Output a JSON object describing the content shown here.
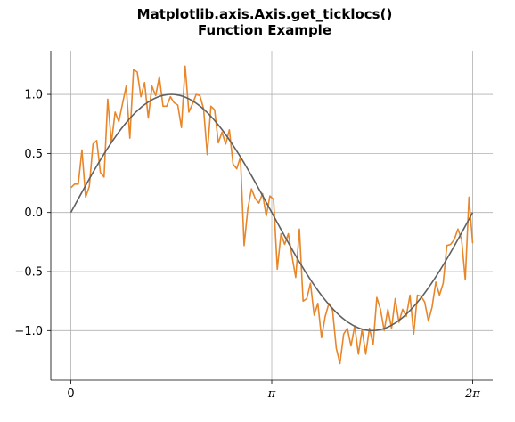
{
  "chart_data": {
    "type": "line",
    "title_lines": [
      "Matplotlib.axis.Axis.get_ticklocs()",
      "Function Example"
    ],
    "xlabel": "",
    "ylabel": "",
    "xlim": [
      -0.314,
      6.597
    ],
    "ylim": [
      -1.42,
      1.37
    ],
    "xticks": [
      {
        "value": 0,
        "label": "0"
      },
      {
        "value": 3.14159,
        "label": "π"
      },
      {
        "value": 6.28319,
        "label": "2π"
      }
    ],
    "yticks": [
      {
        "value": -1.0,
        "label": "−1.0"
      },
      {
        "value": -0.5,
        "label": "−0.5"
      },
      {
        "value": 0.0,
        "label": "0.0"
      },
      {
        "value": 0.5,
        "label": "0.5"
      },
      {
        "value": 1.0,
        "label": "1.0"
      }
    ],
    "grid": true,
    "colors": {
      "noisy": "#e8862a",
      "smooth": "#606060"
    },
    "series": [
      {
        "x_start": 0,
        "x_end": 6.28319,
        "values": [
          0.21,
          0.24,
          0.24,
          0.53,
          0.13,
          0.22,
          0.58,
          0.61,
          0.34,
          0.3,
          0.96,
          0.59,
          0.85,
          0.77,
          0.92,
          1.07,
          0.63,
          1.21,
          1.19,
          0.98,
          1.1,
          0.8,
          1.07,
          0.99,
          1.15,
          0.9,
          0.9,
          0.98,
          0.93,
          0.91,
          0.72,
          1.24,
          0.85,
          0.92,
          1.0,
          0.99,
          0.88,
          0.49,
          0.9,
          0.87,
          0.59,
          0.68,
          0.58,
          0.7,
          0.41,
          0.37,
          0.47,
          -0.28,
          0.03,
          0.2,
          0.12,
          0.08,
          0.16,
          -0.03,
          0.14,
          0.11,
          -0.48,
          -0.18,
          -0.27,
          -0.18,
          -0.37,
          -0.55,
          -0.14,
          -0.75,
          -0.73,
          -0.6,
          -0.87,
          -0.77,
          -1.06,
          -0.88,
          -0.77,
          -0.83,
          -1.15,
          -1.28,
          -1.03,
          -0.98,
          -1.13,
          -0.96,
          -1.2,
          -0.99,
          -1.2,
          -0.98,
          -1.12,
          -0.72,
          -0.82,
          -1.0,
          -0.82,
          -0.98,
          -0.73,
          -0.93,
          -0.82,
          -0.88,
          -0.7,
          -1.03,
          -0.7,
          -0.71,
          -0.76,
          -0.92,
          -0.8,
          -0.59,
          -0.7,
          -0.6,
          -0.28,
          -0.27,
          -0.23,
          -0.14,
          -0.23,
          -0.57,
          0.13,
          -0.26
        ]
      },
      {
        "function": "sin",
        "x_start": 0,
        "x_end": 6.28319,
        "points": 200
      }
    ]
  }
}
